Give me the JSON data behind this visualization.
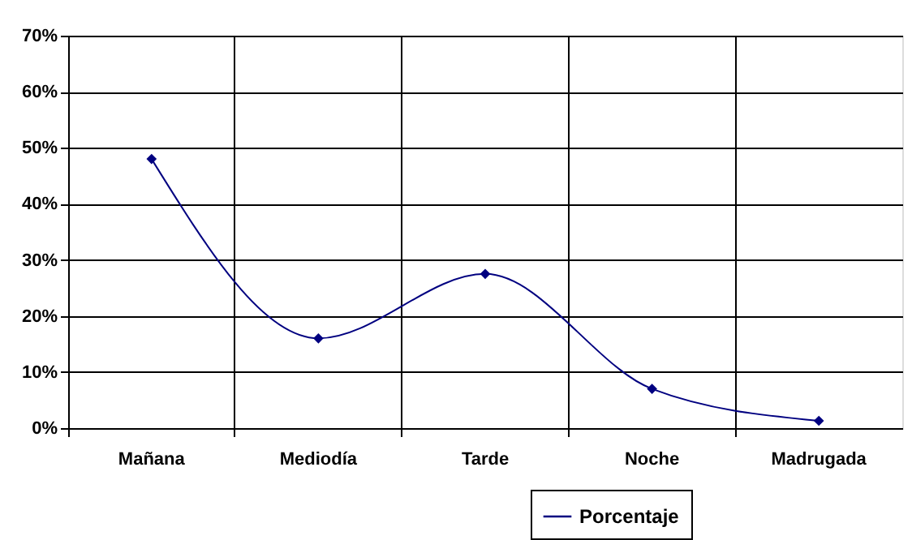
{
  "chart_data": {
    "type": "line",
    "categories": [
      "Mañana",
      "Mediodía",
      "Tarde",
      "Noche",
      "Madrugada"
    ],
    "series": [
      {
        "name": "Porcentaje",
        "color": "#000080",
        "values": [
          48,
          16,
          27.5,
          7,
          1.3
        ]
      }
    ],
    "ylim": [
      0,
      70
    ],
    "yticks": [
      {
        "value": 0,
        "label": "0%"
      },
      {
        "value": 10,
        "label": "10%"
      },
      {
        "value": 20,
        "label": "20%"
      },
      {
        "value": 30,
        "label": "30%"
      },
      {
        "value": 40,
        "label": "40%"
      },
      {
        "value": 50,
        "label": "50%"
      },
      {
        "value": 60,
        "label": "60%"
      },
      {
        "value": 70,
        "label": "70%"
      }
    ],
    "grid": true,
    "legend": "bottom right",
    "marker": "diamond",
    "line_style": "solid"
  }
}
